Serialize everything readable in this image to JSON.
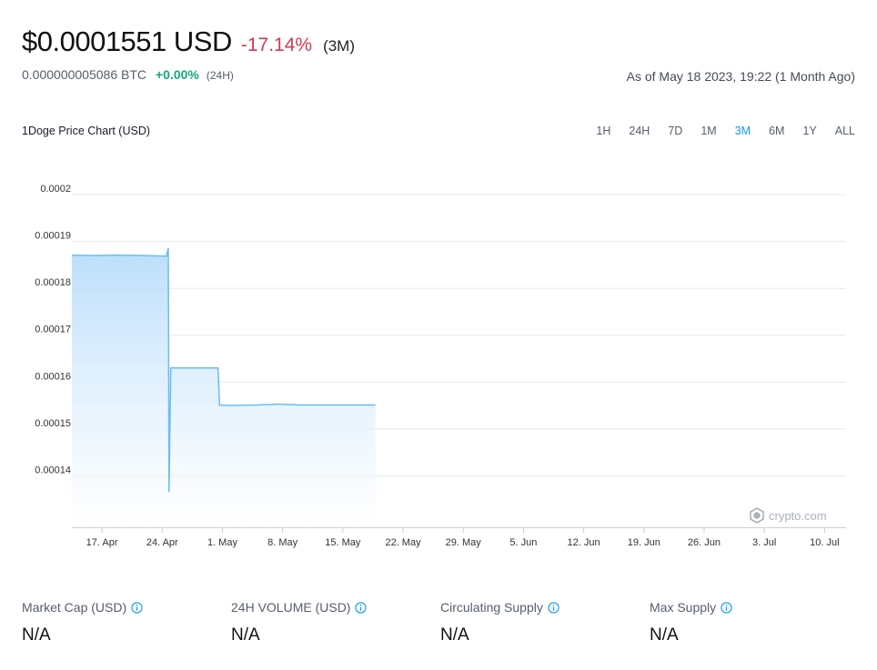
{
  "header": {
    "price_usd": "$0.0001551 USD",
    "change_pct": "-17.14%",
    "period": "(3M)",
    "price_btc": "0.000000005086 BTC",
    "btc_change_pct": "+0.00%",
    "btc_period": "(24H)",
    "as_of": "As of May 18 2023, 19:22 (1 Month Ago)"
  },
  "colors": {
    "negative": "#d33b51",
    "positive": "#11a97d",
    "accent": "#1199fa",
    "line": "#6bbcf3"
  },
  "chart_header": {
    "title": "1Doge Price Chart (USD)",
    "ranges": [
      "1H",
      "24H",
      "7D",
      "1M",
      "3M",
      "6M",
      "1Y",
      "ALL"
    ],
    "active_range": "3M"
  },
  "watermark": {
    "text": "crypto.com",
    "icon": "crypto-com-logo-icon"
  },
  "chart_data": {
    "type": "area",
    "title": "1Doge Price Chart (USD)",
    "xlabel": "",
    "ylabel": "",
    "y_ticks": [
      "0.0002",
      "0.00019",
      "0.00018",
      "0.00017",
      "0.00016",
      "0.00015",
      "0.00014"
    ],
    "y_tick_values": [
      0.0002,
      0.00019,
      0.00018,
      0.00017,
      0.00016,
      0.00015,
      0.00014
    ],
    "ylim": [
      0.000129,
      0.000201
    ],
    "x_ticks": [
      "17. Apr",
      "24. Apr",
      "1. May",
      "8. May",
      "15. May",
      "22. May",
      "29. May",
      "5. Jun",
      "12. Jun",
      "19. Jun",
      "26. Jun",
      "3. Jul",
      "10. Jul"
    ],
    "x_tick_dates": [
      "2023-04-17",
      "2023-04-24",
      "2023-05-01",
      "2023-05-08",
      "2023-05-15",
      "2023-05-22",
      "2023-05-29",
      "2023-06-05",
      "2023-06-12",
      "2023-06-19",
      "2023-06-26",
      "2023-07-03",
      "2023-07-10"
    ],
    "xlim": [
      "2023-04-13T12:00",
      "2023-07-12T12:00"
    ],
    "grid": true,
    "legend": "none",
    "series": [
      {
        "points": [
          [
            "2023-04-13T12:00",
            0.0001871
          ],
          [
            "2023-04-16T00:00",
            0.000187
          ],
          [
            "2023-04-19T00:00",
            0.0001871
          ],
          [
            "2023-04-22T00:00",
            0.000187
          ],
          [
            "2023-04-24T12:00",
            0.0001869
          ],
          [
            "2023-04-24T17:00",
            0.0001886
          ],
          [
            "2023-04-24T19:00",
            0.0001365
          ],
          [
            "2023-04-25T00:00",
            0.000163
          ],
          [
            "2023-04-28T00:00",
            0.000163
          ],
          [
            "2023-04-30T12:00",
            0.000163
          ],
          [
            "2023-04-30T16:00",
            0.0001551
          ],
          [
            "2023-05-02T00:00",
            0.000155
          ],
          [
            "2023-05-05T00:00",
            0.0001551
          ],
          [
            "2023-05-07T12:00",
            0.0001553
          ],
          [
            "2023-05-10T00:00",
            0.0001551
          ],
          [
            "2023-05-14T00:00",
            0.0001551
          ],
          [
            "2023-05-18T19:22",
            0.0001551
          ]
        ]
      }
    ]
  },
  "stats": [
    {
      "label": "Market Cap (USD)",
      "value": "N/A"
    },
    {
      "label": "24H VOLUME (USD)",
      "value": "N/A"
    },
    {
      "label": "Circulating Supply",
      "value": "N/A"
    },
    {
      "label": "Max Supply",
      "value": "N/A"
    }
  ]
}
